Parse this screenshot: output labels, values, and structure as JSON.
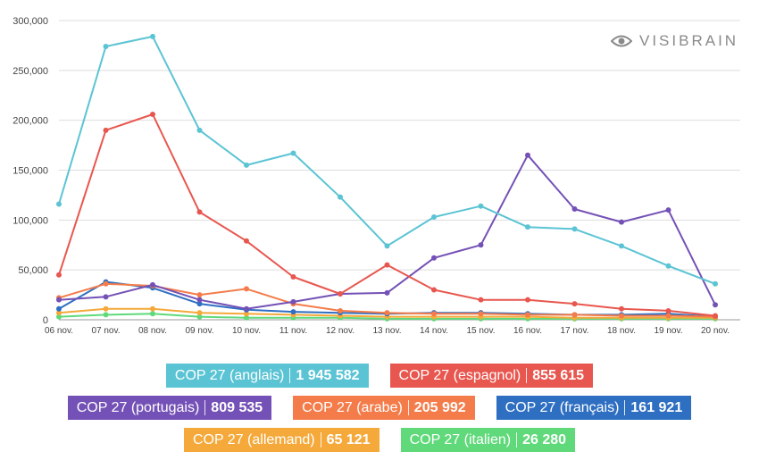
{
  "chart_data": {
    "type": "line",
    "x": [
      "06 nov.",
      "07 nov.",
      "08 nov.",
      "09 nov.",
      "10 nov.",
      "11 nov.",
      "12 nov.",
      "13 nov.",
      "14 nov.",
      "15 nov.",
      "16 nov.",
      "17 nov.",
      "18 nov.",
      "19 nov.",
      "20 nov."
    ],
    "ylim": [
      0,
      300000
    ],
    "yticks": [
      "0",
      "50,000",
      "100,000",
      "150,000",
      "200,000",
      "250,000",
      "300,000"
    ],
    "ytick_values": [
      0,
      50000,
      100000,
      150000,
      200000,
      250000,
      300000
    ],
    "grid": true,
    "legend_position": "bottom",
    "series": [
      {
        "name": "COP 27 (anglais)",
        "total": "1 945 582",
        "color": "#5bc4d4",
        "values": [
          116000,
          274000,
          284000,
          190000,
          155000,
          167000,
          123000,
          74000,
          103000,
          114000,
          93000,
          91000,
          74000,
          54000,
          36000
        ]
      },
      {
        "name": "COP 27 (espagnol)",
        "total": "855 615",
        "color": "#e8574f",
        "values": [
          45000,
          190000,
          206000,
          108000,
          79000,
          43000,
          26000,
          55000,
          30000,
          20000,
          20000,
          16000,
          11000,
          9000,
          4000
        ]
      },
      {
        "name": "COP 27 (portugais)",
        "total": "809 535",
        "color": "#7451b6",
        "values": [
          20000,
          23000,
          35000,
          20000,
          11000,
          18000,
          26000,
          27000,
          62000,
          75000,
          165000,
          111000,
          98000,
          110000,
          15000
        ]
      },
      {
        "name": "COP 27 (arabe)",
        "total": "205 992",
        "color": "#f47c4a",
        "values": [
          22000,
          36000,
          34000,
          25000,
          31000,
          16000,
          9000,
          7000,
          6000,
          6000,
          5000,
          5000,
          4000,
          4000,
          3000
        ]
      },
      {
        "name": "COP 27 (français)",
        "total": "161 921",
        "color": "#2f6fc2",
        "values": [
          11000,
          38000,
          32000,
          16000,
          10000,
          8000,
          7000,
          6000,
          7000,
          7000,
          6000,
          5000,
          5000,
          6000,
          3000
        ]
      },
      {
        "name": "COP 27 (allemand)",
        "total": "65 121",
        "color": "#f4a93a",
        "values": [
          7000,
          11000,
          11000,
          7000,
          6000,
          5000,
          4000,
          3000,
          3000,
          3000,
          3000,
          2000,
          2000,
          2000,
          2000
        ]
      },
      {
        "name": "COP 27 (italien)",
        "total": "26 280",
        "color": "#5fd97a",
        "values": [
          3000,
          5000,
          6000,
          3000,
          2000,
          2000,
          2000,
          1000,
          1000,
          1000,
          1000,
          1000,
          1000,
          1000,
          1000
        ]
      }
    ]
  },
  "watermark": {
    "text": "VISIBRAIN",
    "icon": "eye-icon"
  }
}
